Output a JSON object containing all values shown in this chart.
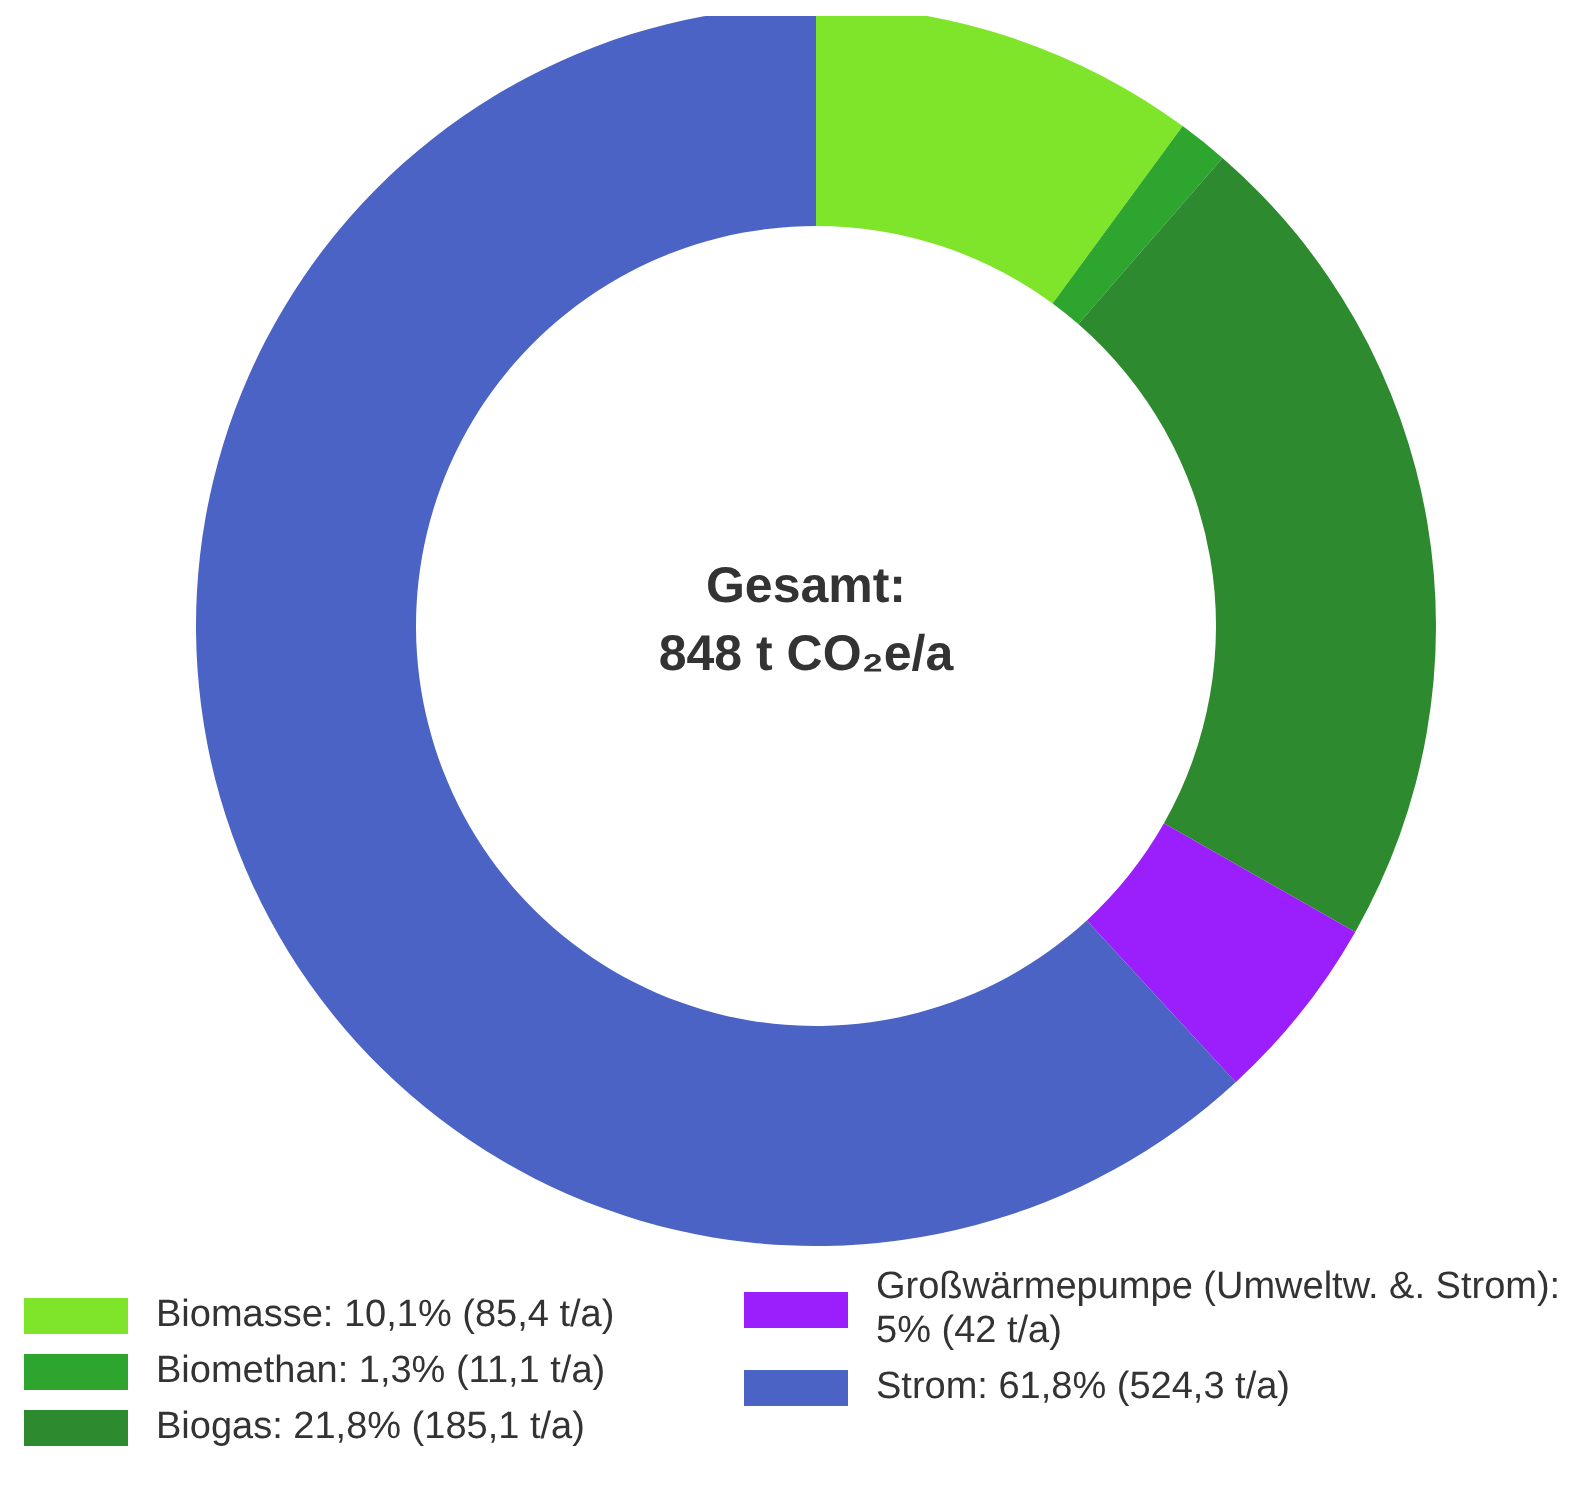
{
  "chart_data": {
    "type": "donut",
    "title": "Gesamt:",
    "subtitle": "848 t CO₂e/a",
    "categories": [
      "Biomasse: 10,1% (85,4 t/a)",
      "Biomethan: 1,3% (11,1 t/a)",
      "Biogas: 21,8% (185,1 t/a)",
      "Großwärmepumpe (Umweltw. &. Strom): 5% (42 t/a)",
      "Strom: 61,8% (524,3 t/a)"
    ],
    "values": [
      85.4,
      11.1,
      185.1,
      42,
      524.3
    ],
    "colors": [
      "#7ee52b",
      "#2ea52e",
      "#2e8a2e",
      "#9b1ffc",
      "#4a63c4"
    ],
    "legend": "bottom"
  }
}
